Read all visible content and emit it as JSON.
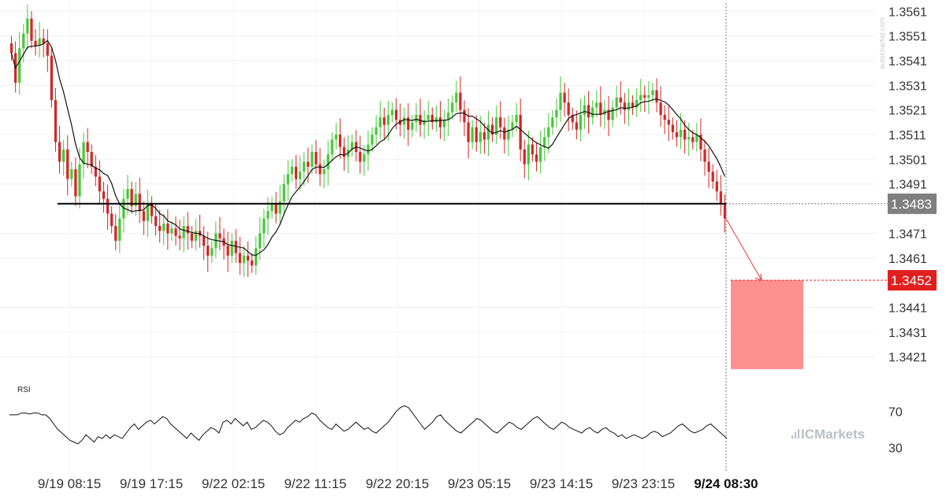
{
  "chart_data": {
    "type": "candlestick",
    "instrument_panel": {
      "y_ticks": [
        "1.3561",
        "1.3551",
        "1.3541",
        "1.3531",
        "1.3521",
        "1.3511",
        "1.3501",
        "1.3491",
        "1.3471",
        "1.3461",
        "1.3441",
        "1.3431",
        "1.3421"
      ],
      "ylim": [
        1.3415,
        1.3563
      ],
      "support_level": 1.3483,
      "current_price_label": "1.3483",
      "target_price_label": "1.3452",
      "target_price": 1.3452,
      "target_zone": {
        "from": 1.3452,
        "to": 1.3416
      },
      "close_series": [
        1.3544,
        1.3532,
        1.3546,
        1.3552,
        1.3558,
        1.3549,
        1.3547,
        1.355,
        1.3548,
        1.3543,
        1.3525,
        1.3508,
        1.35,
        1.3505,
        1.3493,
        1.3497,
        1.3486,
        1.3499,
        1.3508,
        1.3504,
        1.3498,
        1.3494,
        1.3488,
        1.3485,
        1.3479,
        1.3474,
        1.3468,
        1.3477,
        1.3485,
        1.3489,
        1.3482,
        1.3487,
        1.348,
        1.3476,
        1.3483,
        1.3478,
        1.3474,
        1.3472,
        1.3475,
        1.3471,
        1.3473,
        1.347,
        1.3469,
        1.3474,
        1.3471,
        1.3468,
        1.3472,
        1.347,
        1.3466,
        1.3462,
        1.3465,
        1.3471,
        1.3469,
        1.3466,
        1.3462,
        1.3468,
        1.3463,
        1.3459,
        1.3462,
        1.346,
        1.3458,
        1.3465,
        1.3471,
        1.3477,
        1.348,
        1.3483,
        1.3479,
        1.3484,
        1.3491,
        1.3495,
        1.3498,
        1.3493,
        1.3496,
        1.35,
        1.3498,
        1.3504,
        1.3499,
        1.3495,
        1.3497,
        1.3503,
        1.3509,
        1.3511,
        1.3506,
        1.3502,
        1.3505,
        1.3508,
        1.3504,
        1.35,
        1.3503,
        1.3507,
        1.3511,
        1.3514,
        1.3518,
        1.3515,
        1.3519,
        1.3521,
        1.3517,
        1.3515,
        1.3518,
        1.3513,
        1.3516,
        1.3519,
        1.3515,
        1.3517,
        1.3519,
        1.3516,
        1.3518,
        1.3514,
        1.3517,
        1.352,
        1.3524,
        1.3528,
        1.3521,
        1.3516,
        1.3508,
        1.3514,
        1.3508,
        1.3512,
        1.3509,
        1.3515,
        1.3511,
        1.3518,
        1.3514,
        1.3509,
        1.3513,
        1.3516,
        1.3519,
        1.3505,
        1.3499,
        1.3507,
        1.3503,
        1.35,
        1.3506,
        1.351,
        1.3514,
        1.3518,
        1.3521,
        1.3528,
        1.3524,
        1.3519,
        1.3516,
        1.3513,
        1.3519,
        1.3523,
        1.3518,
        1.3522,
        1.3524,
        1.3519,
        1.3521,
        1.3517,
        1.3522,
        1.3526,
        1.3524,
        1.3521,
        1.3524,
        1.3522,
        1.3525,
        1.3527,
        1.3526,
        1.3527,
        1.3529,
        1.3524,
        1.3519,
        1.3517,
        1.3515,
        1.3512,
        1.351,
        1.3513,
        1.3509,
        1.351,
        1.3508,
        1.3511,
        1.3505,
        1.35,
        1.3496,
        1.3492,
        1.3488,
        1.3483,
        1.3477
      ]
    },
    "rsi_panel": {
      "label": "RSI",
      "y_ticks": [
        "70",
        "30"
      ],
      "ylim": [
        20,
        85
      ],
      "values": [
        66,
        66,
        66,
        68,
        68,
        67,
        68,
        68,
        66,
        66,
        62,
        56,
        50,
        46,
        42,
        38,
        36,
        34,
        38,
        44,
        40,
        36,
        42,
        40,
        44,
        40,
        44,
        42,
        40,
        46,
        52,
        56,
        50,
        54,
        58,
        60,
        56,
        60,
        64,
        62,
        56,
        52,
        48,
        44,
        40,
        46,
        42,
        38,
        44,
        48,
        52,
        50,
        46,
        58,
        60,
        56,
        62,
        58,
        54,
        58,
        50,
        52,
        56,
        60,
        58,
        54,
        48,
        44,
        46,
        52,
        56,
        60,
        58,
        62,
        64,
        68,
        66,
        60,
        56,
        52,
        50,
        56,
        52,
        48,
        50,
        54,
        58,
        54,
        50,
        52,
        48,
        46,
        50,
        54,
        58,
        64,
        70,
        74,
        76,
        74,
        68,
        62,
        56,
        50,
        54,
        58,
        64,
        66,
        60,
        56,
        52,
        48,
        46,
        50,
        54,
        58,
        62,
        60,
        56,
        52,
        48,
        46,
        50,
        54,
        58,
        56,
        52,
        50,
        54,
        58,
        62,
        64,
        60,
        56,
        52,
        50,
        54,
        58,
        56,
        52,
        50,
        48,
        46,
        50,
        52,
        48,
        46,
        50,
        52,
        48,
        46,
        42,
        44,
        40,
        42,
        44,
        42,
        40,
        42,
        46,
        48,
        46,
        42,
        44,
        46,
        50,
        54,
        56,
        52,
        48,
        46,
        48,
        50,
        54,
        56,
        52,
        48,
        44,
        40
      ]
    },
    "x_ticks": [
      "9/19 08:15",
      "9/19 17:15",
      "9/22 02:15",
      "9/22 11:15",
      "9/22 20:15",
      "9/23 05:15",
      "9/23 14:15",
      "9/23 23:15",
      "9/24 08:30"
    ],
    "grid": true,
    "colors": {
      "up": "#48c83a",
      "down": "#d42626",
      "support": "#000000",
      "current_tag": "#7f7f7f",
      "target_tag": "#e11f1f",
      "target_zone": "#ff9090",
      "arrow": "#e33b3b"
    }
  },
  "watermark": "autochartist.com",
  "brand": "ICMarkets"
}
